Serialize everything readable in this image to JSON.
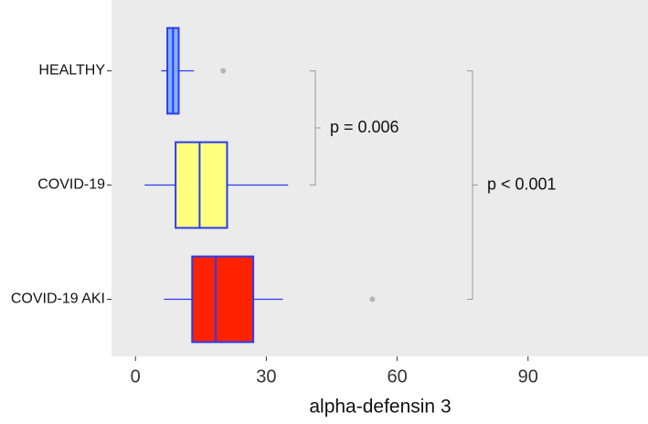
{
  "chart_data": {
    "type": "boxplot",
    "orientation": "horizontal",
    "x_label": "alpha-defensin 3",
    "categories": [
      "HEALTHY",
      "COVID-19",
      "COVID-19 AKI"
    ],
    "boxes": [
      {
        "min": 5.9,
        "q1": 7.3,
        "median": 8.6,
        "q3": 9.9,
        "max": 13.4,
        "outliers": [
          20.1
        ],
        "color": "#80b0ff"
      },
      {
        "min": 2.1,
        "q1": 9.2,
        "median": 14.7,
        "q3": 21.0,
        "max": 35.0,
        "outliers": [],
        "color": "#ffff80"
      },
      {
        "min": 6.5,
        "q1": 13.0,
        "median": 18.4,
        "q3": 27.0,
        "max": 33.8,
        "outliers": [
          54.3
        ],
        "color": "#ff2200"
      }
    ],
    "stroke_color": "#2a3cf0",
    "outlier_color": "#b3b3b3",
    "xlim": [
      -5.5,
      117.5
    ],
    "xticks": [
      0,
      30,
      60,
      90
    ],
    "grid": false,
    "annotations": [
      "p = 0.006",
      "p < 0.001"
    ]
  }
}
